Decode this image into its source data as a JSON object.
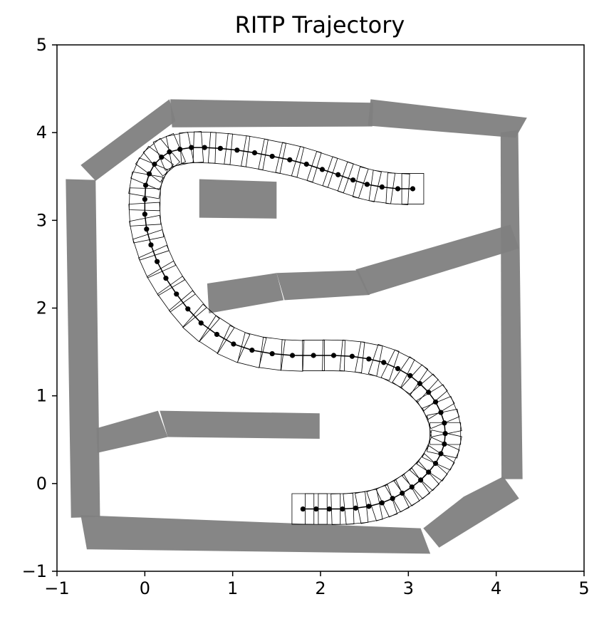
{
  "chart_data": {
    "type": "scatter",
    "title": "RITP Trajectory",
    "xlabel": "",
    "ylabel": "",
    "xlim": [
      -1,
      5
    ],
    "ylim": [
      -1,
      5
    ],
    "xticks": [
      "−1",
      "0",
      "1",
      "2",
      "3",
      "4",
      "5"
    ],
    "yticks": [
      "−1",
      "0",
      "1",
      "2",
      "3",
      "4",
      "5"
    ],
    "grid": false,
    "legend": null,
    "colors": {
      "obstacle": "#808080",
      "trajectory": "#000000",
      "footprint_stroke": "#000000"
    },
    "obstacles": [
      [
        [
          -0.9,
          3.47
        ],
        [
          -0.56,
          3.46
        ],
        [
          -0.51,
          -0.38
        ],
        [
          -0.84,
          -0.39
        ]
      ],
      [
        [
          -0.73,
          3.63
        ],
        [
          0.28,
          4.38
        ],
        [
          0.35,
          4.13
        ],
        [
          -0.56,
          3.45
        ]
      ],
      [
        [
          0.29,
          4.38
        ],
        [
          2.6,
          4.34
        ],
        [
          2.59,
          4.07
        ],
        [
          0.31,
          4.06
        ]
      ],
      [
        [
          2.57,
          4.38
        ],
        [
          4.35,
          4.17
        ],
        [
          4.22,
          3.94
        ],
        [
          2.54,
          4.08
        ]
      ],
      [
        [
          4.05,
          4.0
        ],
        [
          4.25,
          4.03
        ],
        [
          4.3,
          0.05
        ],
        [
          4.06,
          0.05
        ]
      ],
      [
        [
          3.17,
          -0.51
        ],
        [
          3.63,
          -0.15
        ],
        [
          4.08,
          0.08
        ],
        [
          4.26,
          -0.17
        ],
        [
          3.35,
          -0.73
        ]
      ],
      [
        [
          -0.73,
          -0.36
        ],
        [
          3.14,
          -0.51
        ],
        [
          3.25,
          -0.8
        ],
        [
          -0.66,
          -0.75
        ]
      ],
      [
        [
          -0.55,
          0.63
        ],
        [
          0.15,
          0.83
        ],
        [
          0.26,
          0.53
        ],
        [
          -0.54,
          0.35
        ]
      ],
      [
        [
          0.17,
          0.83
        ],
        [
          1.99,
          0.8
        ],
        [
          1.99,
          0.51
        ],
        [
          0.26,
          0.53
        ]
      ],
      [
        [
          0.62,
          3.47
        ],
        [
          1.5,
          3.44
        ],
        [
          1.5,
          3.02
        ],
        [
          0.62,
          3.03
        ]
      ],
      [
        [
          0.71,
          2.28
        ],
        [
          1.5,
          2.4
        ],
        [
          1.58,
          2.09
        ],
        [
          0.73,
          1.94
        ]
      ],
      [
        [
          1.5,
          2.4
        ],
        [
          2.43,
          2.43
        ],
        [
          2.56,
          2.15
        ],
        [
          1.59,
          2.09
        ]
      ],
      [
        [
          2.4,
          2.44
        ],
        [
          4.16,
          2.95
        ],
        [
          4.26,
          2.68
        ],
        [
          2.54,
          2.15
        ]
      ]
    ],
    "trajectory": {
      "x": [
        1.8,
        1.95,
        2.1,
        2.25,
        2.4,
        2.55,
        2.7,
        2.82,
        2.93,
        3.04,
        3.14,
        3.23,
        3.31,
        3.37,
        3.41,
        3.42,
        3.41,
        3.37,
        3.31,
        3.23,
        3.13,
        3.02,
        2.88,
        2.72,
        2.55,
        2.36,
        2.15,
        1.92,
        1.68,
        1.45,
        1.22,
        1.01,
        0.82,
        0.64,
        0.49,
        0.36,
        0.24,
        0.14,
        0.07,
        0.02,
        0.0,
        0.0,
        0.01,
        0.05,
        0.11,
        0.19,
        0.28,
        0.4,
        0.53,
        0.68,
        0.86,
        1.05,
        1.25,
        1.45,
        1.65,
        1.84,
        2.02,
        2.2,
        2.37,
        2.53,
        2.7,
        2.88,
        3.05
      ],
      "y": [
        -0.29,
        -0.29,
        -0.29,
        -0.29,
        -0.28,
        -0.26,
        -0.22,
        -0.17,
        -0.11,
        -0.04,
        0.04,
        0.13,
        0.23,
        0.34,
        0.45,
        0.57,
        0.69,
        0.81,
        0.93,
        1.04,
        1.14,
        1.23,
        1.31,
        1.38,
        1.42,
        1.45,
        1.46,
        1.46,
        1.46,
        1.48,
        1.52,
        1.59,
        1.7,
        1.83,
        1.99,
        2.16,
        2.34,
        2.53,
        2.72,
        2.9,
        3.07,
        3.24,
        3.4,
        3.53,
        3.64,
        3.72,
        3.78,
        3.81,
        3.83,
        3.83,
        3.82,
        3.8,
        3.77,
        3.73,
        3.69,
        3.64,
        3.58,
        3.52,
        3.46,
        3.41,
        3.38,
        3.36,
        3.36
      ],
      "footprint_width": 0.35,
      "footprint_length": 0.25
    }
  }
}
